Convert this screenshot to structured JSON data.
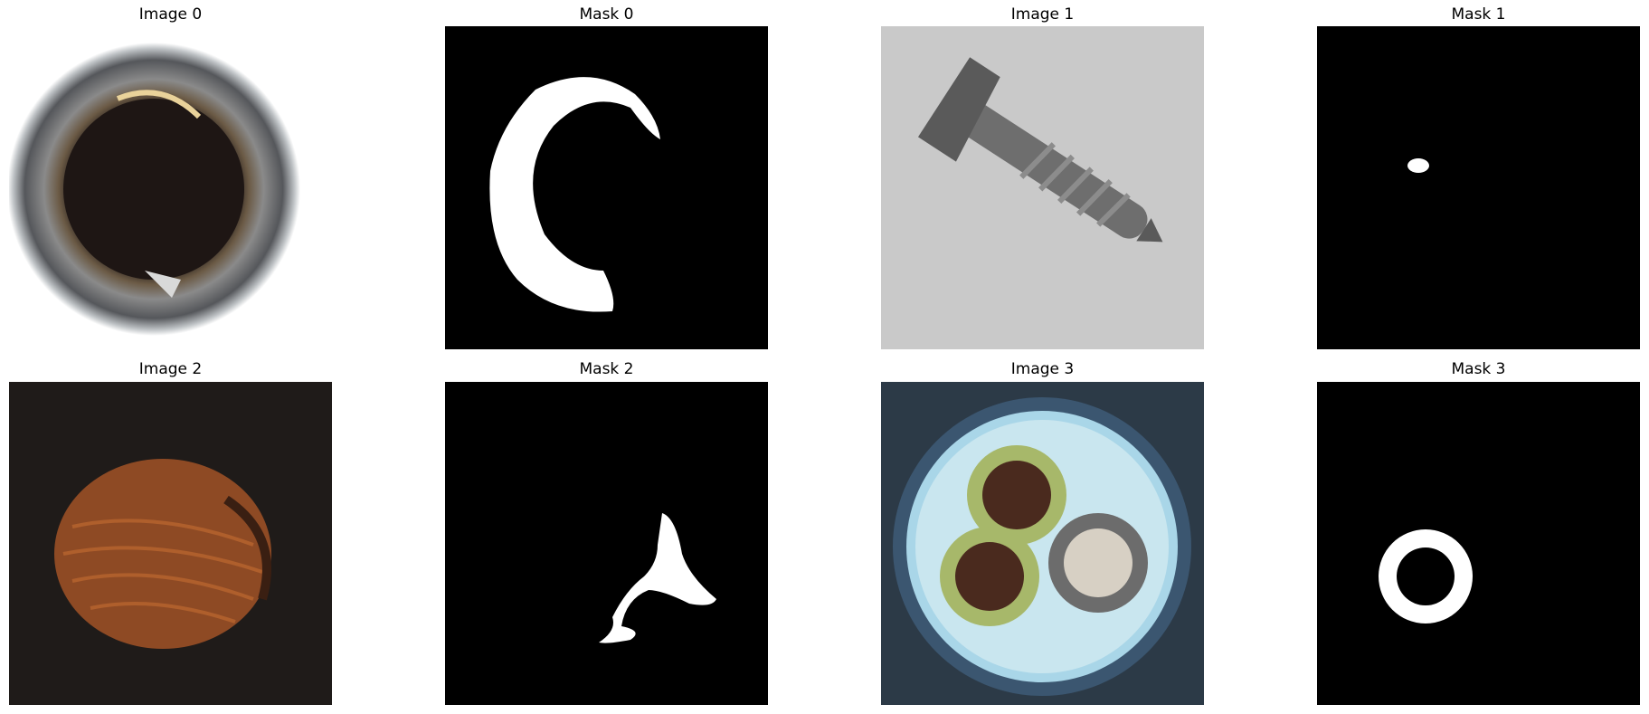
{
  "panels": [
    {
      "title": "Image 0",
      "kind": "image",
      "subject": "bottle-rim"
    },
    {
      "title": "Mask 0",
      "kind": "mask"
    },
    {
      "title": "Image 1",
      "kind": "image",
      "subject": "screw"
    },
    {
      "title": "Mask 1",
      "kind": "mask"
    },
    {
      "title": "Image 2",
      "kind": "image",
      "subject": "hazelnut"
    },
    {
      "title": "Mask 2",
      "kind": "mask"
    },
    {
      "title": "Image 3",
      "kind": "image",
      "subject": "cable-cross-section"
    },
    {
      "title": "Mask 3",
      "kind": "mask"
    }
  ],
  "colors": {
    "mask_background": "#000000",
    "mask_foreground": "#ffffff",
    "figure_background": "#ffffff"
  }
}
